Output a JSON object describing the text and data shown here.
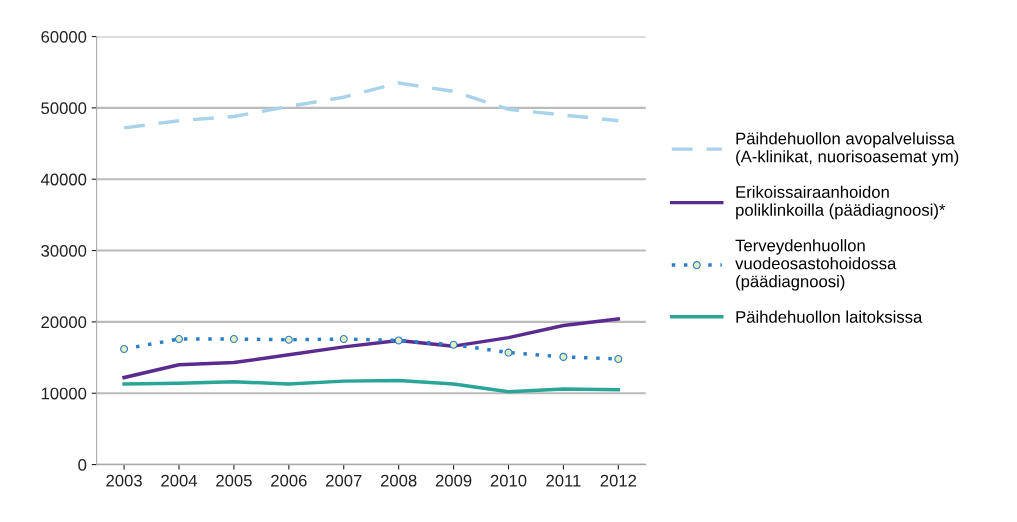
{
  "chart_data": {
    "type": "line",
    "categories": [
      "2003",
      "2004",
      "2005",
      "2006",
      "2007",
      "2008",
      "2009",
      "2010",
      "2011",
      "2012"
    ],
    "series": [
      {
        "name": "Päihdehuollon avopalveluissa\n(A-klinikat, nuorisoasemat ym)",
        "color": "#a9d3ea",
        "line_style": "dashed",
        "values": [
          47200,
          48200,
          48800,
          50200,
          51500,
          53500,
          52300,
          49800,
          49000,
          48200
        ]
      },
      {
        "name": "Erikoissairaanhoidon\npoliklinkoilla (päädiagnoosi)*",
        "color": "#5b2c8f",
        "line_style": "solid",
        "values": [
          12200,
          14000,
          14300,
          15400,
          16500,
          17400,
          16600,
          17800,
          19500,
          20400
        ]
      },
      {
        "name": "Terveydenhuollon\nvuodeosastohoidossa\n(päädiagnoosi)",
        "color": "#2a7fc9",
        "line_style": "dotted",
        "marker": "circle",
        "values": [
          16200,
          17600,
          17600,
          17500,
          17600,
          17400,
          16800,
          15700,
          15100,
          14800
        ]
      },
      {
        "name": "Päihdehuollon laitoksissa",
        "color": "#2aa597",
        "line_style": "solid",
        "values": [
          11300,
          11400,
          11600,
          11300,
          11700,
          11800,
          11300,
          10200,
          10600,
          10500
        ]
      }
    ],
    "ylim": [
      0,
      60000
    ],
    "yticks": [
      0,
      10000,
      20000,
      30000,
      40000,
      50000,
      60000
    ],
    "grid": "y",
    "legend": "right"
  }
}
